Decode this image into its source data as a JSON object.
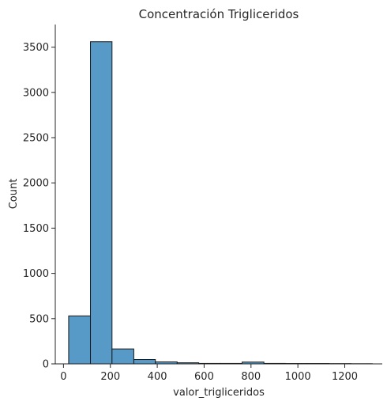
{
  "chart_data": {
    "type": "bar",
    "title": "Concentración Trigliceridos",
    "xlabel": "valor_trigliceridos",
    "ylabel": "Count",
    "xlim": [
      -35,
      1360
    ],
    "ylim": [
      0,
      3750
    ],
    "xticks": [
      0,
      200,
      400,
      600,
      800,
      1000,
      1200
    ],
    "yticks": [
      0,
      500,
      1000,
      1500,
      2000,
      2500,
      3000,
      3500
    ],
    "bin_edges": [
      22,
      115,
      207,
      300,
      392,
      485,
      577,
      670,
      762,
      855,
      947,
      1040,
      1132,
      1225,
      1317
    ],
    "values": [
      530,
      3560,
      165,
      48,
      22,
      12,
      5,
      5,
      20,
      5,
      4,
      4,
      3,
      2
    ],
    "bar_color": "#5799c7",
    "edge_color": "#1a1a1a",
    "grid": false
  }
}
